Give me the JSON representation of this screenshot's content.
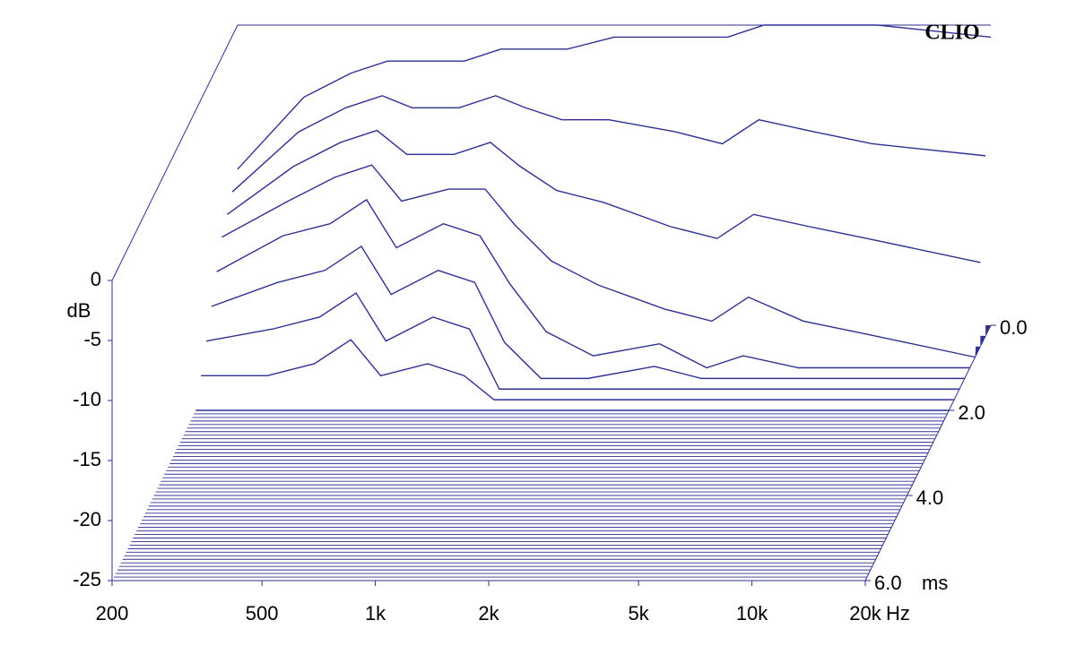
{
  "chart_data": {
    "type": "waterfall",
    "brand": "CLIO",
    "y_label": "dB",
    "x_unit": "Hz",
    "z_unit": "ms",
    "x_log": true,
    "color": "#2e3192",
    "xlim": [
      200,
      20000
    ],
    "xticks": [
      200,
      500,
      {
        "value": 1000,
        "label": "1k"
      },
      {
        "value": 2000,
        "label": "2k"
      },
      {
        "value": 5000,
        "label": "5k"
      },
      {
        "value": 10000,
        "label": "10k"
      },
      {
        "value": 20000,
        "label": "20k"
      }
    ],
    "ylim": [
      -25,
      0
    ],
    "yticks": [
      0,
      -5,
      -10,
      -15,
      -20,
      -25
    ],
    "zlim": [
      0,
      6
    ],
    "zticks": [
      {
        "value": 0,
        "label": "0.0"
      },
      {
        "value": 2,
        "label": "2.0"
      },
      {
        "value": 4,
        "label": "4.0"
      },
      {
        "value": 6,
        "label": "6.0"
      }
    ],
    "x": [
      200,
      300,
      400,
      500,
      600,
      800,
      1000,
      1200,
      1500,
      2000,
      3000,
      4000,
      5000,
      7000,
      10000,
      20000
    ],
    "slices": [
      {
        "t": 0,
        "values": [
          -12,
          -6,
          -4,
          -3,
          -3,
          -3,
          -2,
          -2,
          -2,
          -1,
          -1,
          -1,
          0,
          0,
          0,
          -1
        ]
      },
      {
        "t": 0.25,
        "values": [
          -13,
          -8,
          -6,
          -5,
          -6,
          -6,
          -5,
          -6,
          -7,
          -7,
          -8,
          -9,
          -7,
          -8,
          -9,
          -10
        ]
      },
      {
        "t": 0.5,
        "values": [
          -14,
          -10,
          -8,
          -7,
          -9,
          -9,
          -8,
          -10,
          -12,
          -13,
          -15,
          -16,
          -14,
          -15,
          -16,
          -18
        ]
      },
      {
        "t": 0.75,
        "values": [
          -15,
          -12,
          -10,
          -9,
          -12,
          -11,
          -11,
          -14,
          -17,
          -19,
          -21,
          -22,
          -20,
          -22,
          -23,
          -25
        ]
      },
      {
        "t": 1.0,
        "values": [
          -17,
          -14,
          -13,
          -11,
          -15,
          -13,
          -14,
          -18,
          -22,
          -24,
          -23,
          -25,
          -24,
          -25,
          -25,
          -25
        ]
      },
      {
        "t": 1.25,
        "values": [
          -19,
          -17,
          -16,
          -14,
          -18,
          -16,
          -17,
          -22,
          -25,
          -25,
          -24,
          -25,
          -25,
          -25,
          -25,
          -25
        ]
      },
      {
        "t": 1.5,
        "values": [
          -21,
          -20,
          -19,
          -17,
          -21,
          -19,
          -20,
          -25,
          -25,
          -25,
          -25,
          -25,
          -25,
          -25,
          -25,
          -25
        ]
      },
      {
        "t": 1.75,
        "values": [
          -23,
          -23,
          -22,
          -20,
          -23,
          -22,
          -23,
          -25,
          -25,
          -25,
          -25,
          -25,
          -25,
          -25,
          -25,
          -25
        ]
      },
      {
        "t": 2.0,
        "values": [
          -25,
          -25,
          -25,
          -25,
          -25,
          -25,
          -25,
          -25,
          -25,
          -25,
          -25,
          -25,
          -25,
          -25,
          -25,
          -25
        ]
      }
    ]
  }
}
